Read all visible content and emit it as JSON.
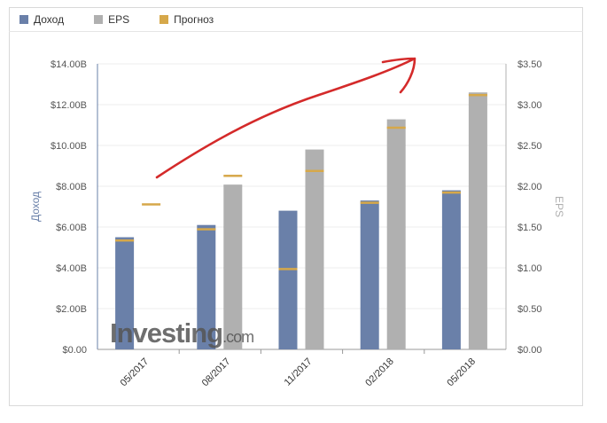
{
  "legend": {
    "revenue": "Доход",
    "eps": "EPS",
    "forecast": "Прогноз"
  },
  "colors": {
    "revenue": "#6a80a9",
    "eps": "#b0b0b0",
    "forecast": "#d6a84a",
    "arrow": "#d42a2a",
    "grid": "#ececec",
    "axis_left": "#6a80a9",
    "axis_right": "#b0b0b0"
  },
  "watermark": {
    "text": "Investing",
    "suffix": ".com"
  },
  "chart_data": {
    "type": "bar",
    "categories": [
      "05/2017",
      "08/2017",
      "11/2017",
      "02/2018",
      "05/2018"
    ],
    "ylabel_left": "Доход",
    "ylabel_right": "EPS",
    "ylim_left": [
      0,
      14
    ],
    "ylim_right": [
      0,
      3.5
    ],
    "yticks_left": [
      "$0.00",
      "$2.00B",
      "$4.00B",
      "$6.00B",
      "$8.00B",
      "$10.00B",
      "$12.00B",
      "$14.00B"
    ],
    "yticks_right": [
      "$0.00",
      "$0.50",
      "$1.00",
      "$1.50",
      "$2.00",
      "$2.50",
      "$3.00",
      "$3.50"
    ],
    "grid": true,
    "legend_position": "top-left",
    "series": [
      {
        "name": "Доход",
        "axis": "left",
        "unit": "B",
        "values": [
          5.5,
          6.1,
          6.8,
          7.3,
          7.8
        ],
        "forecast": [
          5.35,
          5.9,
          3.95,
          7.2,
          7.7
        ]
      },
      {
        "name": "EPS",
        "axis": "right",
        "values": [
          null,
          2.02,
          2.45,
          2.82,
          3.15
        ],
        "forecast": [
          1.78,
          2.13,
          2.19,
          2.72,
          3.12
        ]
      }
    ]
  }
}
